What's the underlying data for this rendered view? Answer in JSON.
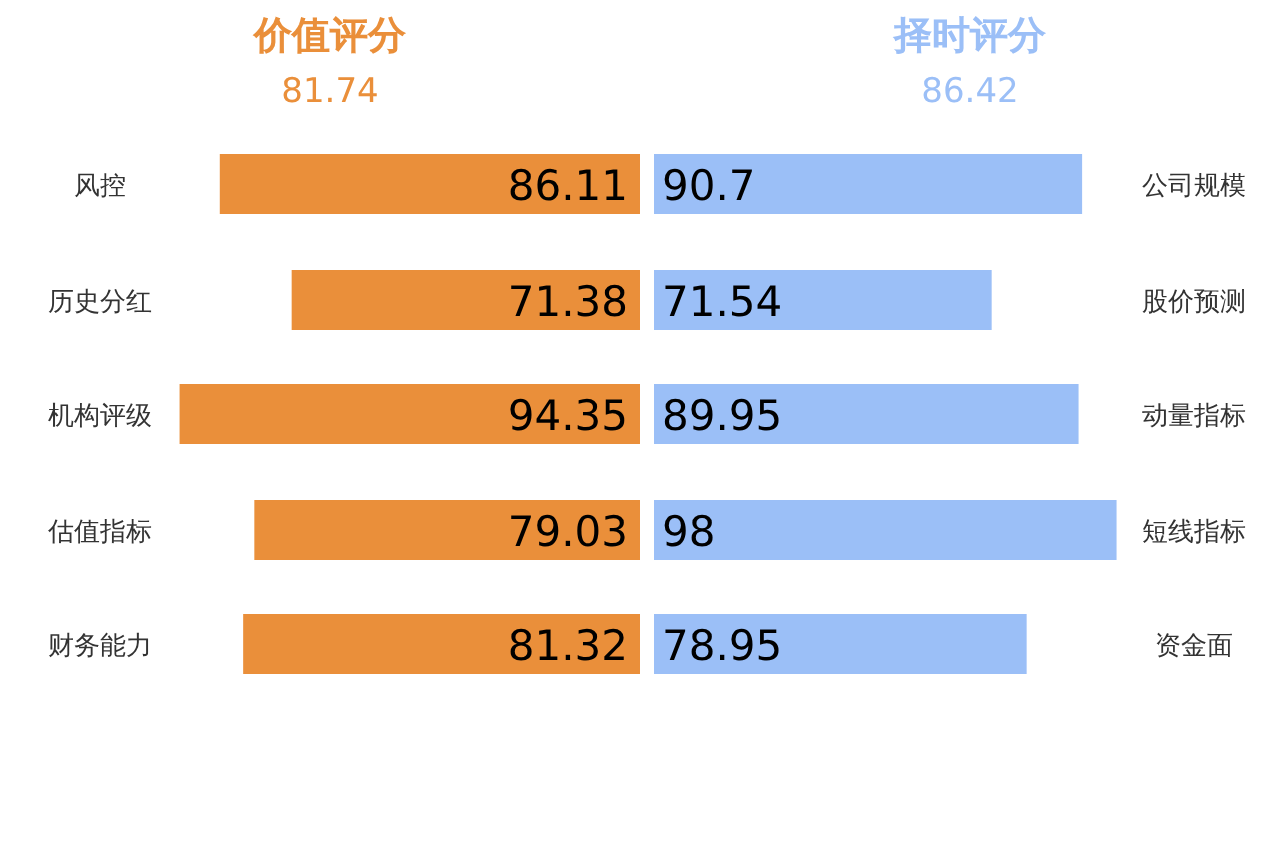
{
  "chart_data": [
    {
      "type": "bar",
      "orientation": "horizontal",
      "title": "价值评分",
      "subtitle": "81.74",
      "categories": [
        "风控",
        "历史分红",
        "机构评级",
        "估值指标",
        "财务能力"
      ],
      "values": [
        86.11,
        71.38,
        94.35,
        79.03,
        81.32
      ],
      "color": "#ea8f3a",
      "data_labels": true
    },
    {
      "type": "bar",
      "orientation": "horizontal",
      "title": "择时评分",
      "subtitle": "86.42",
      "categories": [
        "公司规模",
        "股价预测",
        "动量指标",
        "短线指标",
        "资金面"
      ],
      "values": [
        90.7,
        71.54,
        89.95,
        98,
        78.95
      ],
      "color": "#9bbff7",
      "data_labels": true
    }
  ]
}
